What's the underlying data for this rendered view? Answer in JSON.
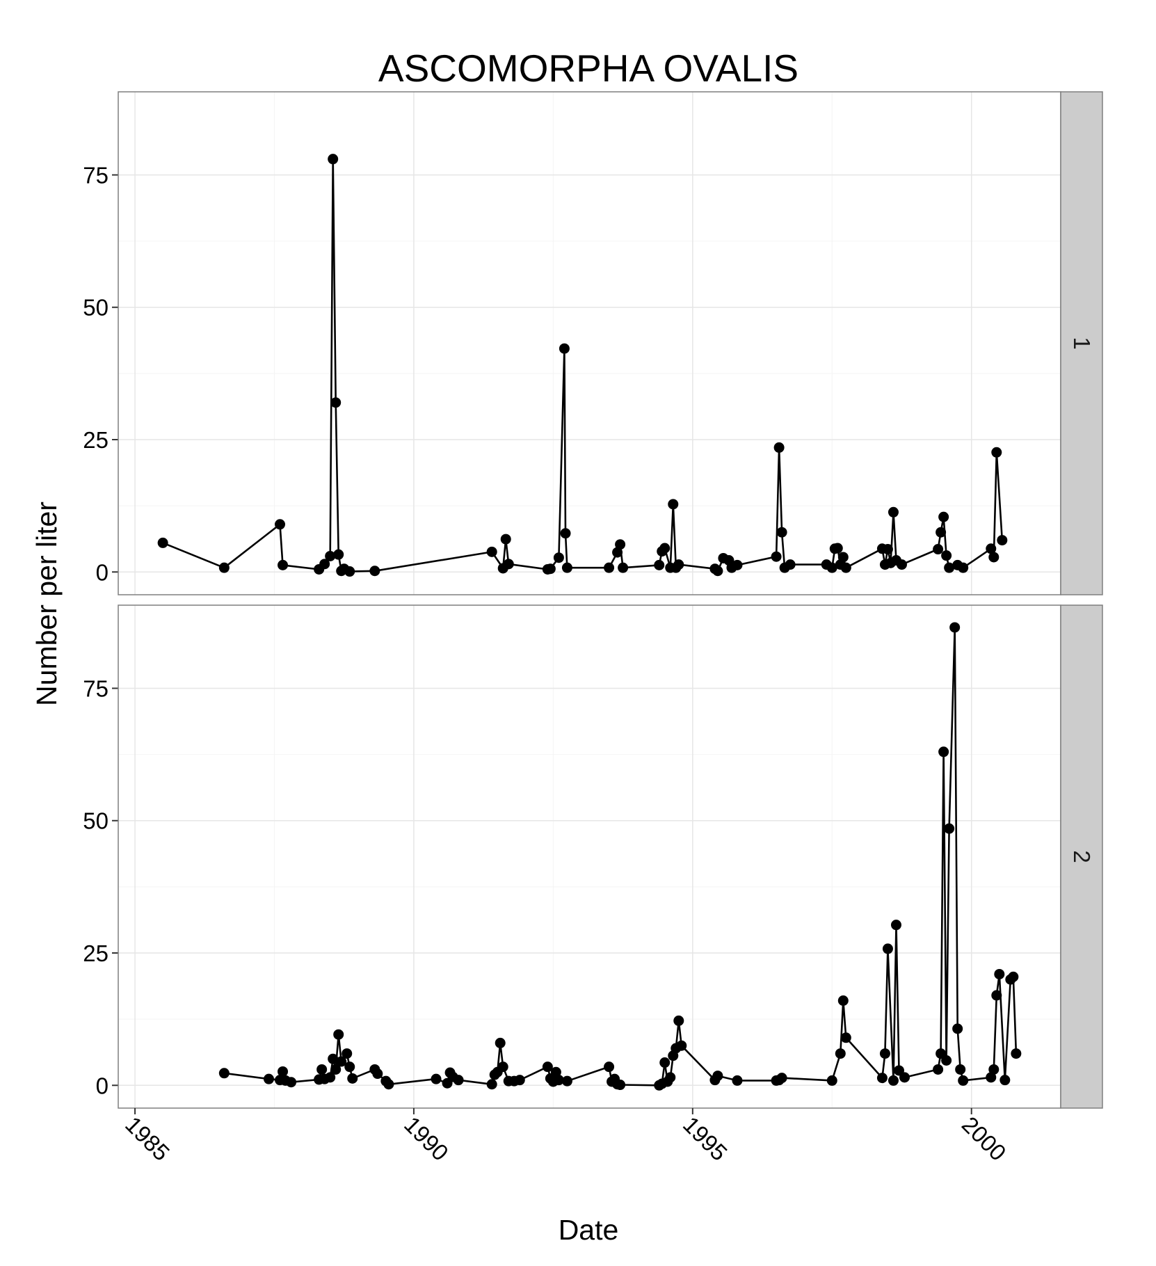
{
  "chart_data": {
    "type": "line",
    "title": "ASCOMORPHA OVALIS",
    "xlabel": "Date",
    "ylabel": "Number per liter",
    "x_ticks": [
      "1985",
      "1990",
      "1995",
      "2000"
    ],
    "y_ticks": [
      "0",
      "25",
      "50",
      "75"
    ],
    "xlim": [
      1984.7,
      2001.6
    ],
    "ylim": [
      -4.3,
      90.7
    ],
    "grid": true,
    "markers": true,
    "facet": "rows",
    "panels": [
      {
        "label": "1",
        "series": {
          "x": [
            1985.5,
            1986.6,
            1987.6,
            1987.65,
            1988.3,
            1988.4,
            1988.5,
            1988.55,
            1988.6,
            1988.65,
            1988.7,
            1988.75,
            1988.85,
            1989.3,
            1991.4,
            1991.6,
            1991.65,
            1991.7,
            1992.4,
            1992.45,
            1992.6,
            1992.7,
            1992.72,
            1992.75,
            1993.5,
            1993.65,
            1993.7,
            1993.75,
            1994.4,
            1994.45,
            1994.5,
            1994.6,
            1994.65,
            1994.7,
            1994.75,
            1995.4,
            1995.45,
            1995.55,
            1995.65,
            1995.7,
            1995.8,
            1996.5,
            1996.55,
            1996.6,
            1996.65,
            1996.75,
            1997.4,
            1997.5,
            1997.55,
            1997.6,
            1997.65,
            1997.7,
            1997.75,
            1998.4,
            1998.45,
            1998.5,
            1998.55,
            1998.6,
            1998.65,
            1998.75,
            1999.4,
            1999.45,
            1999.5,
            1999.55,
            1999.6,
            1999.75,
            1999.85,
            2000.35,
            2000.4,
            2000.45,
            2000.55
          ],
          "y": [
            5.5,
            0.8,
            9.0,
            1.3,
            0.5,
            1.5,
            3.0,
            78.0,
            32.0,
            3.3,
            0.2,
            0.6,
            0.1,
            0.2,
            3.8,
            0.7,
            6.2,
            1.5,
            0.5,
            0.6,
            2.7,
            42.2,
            7.3,
            0.8,
            0.8,
            3.7,
            5.2,
            0.8,
            1.3,
            3.9,
            4.5,
            0.8,
            12.8,
            0.8,
            1.4,
            0.6,
            0.2,
            2.6,
            2.2,
            0.8,
            1.3,
            2.9,
            23.5,
            7.5,
            0.8,
            1.4,
            1.4,
            0.8,
            4.4,
            4.5,
            1.4,
            2.8,
            0.8,
            4.4,
            1.4,
            4.3,
            1.7,
            11.3,
            2.2,
            1.4,
            4.3,
            7.5,
            10.4,
            3.1,
            0.8,
            1.3,
            0.8,
            4.4,
            2.8,
            22.6,
            6.0
          ]
        }
      },
      {
        "label": "2",
        "series": {
          "x": [
            1986.6,
            1987.4,
            1987.6,
            1987.65,
            1987.7,
            1987.8,
            1988.3,
            1988.35,
            1988.4,
            1988.5,
            1988.55,
            1988.6,
            1988.65,
            1988.7,
            1988.8,
            1988.85,
            1988.9,
            1989.3,
            1989.35,
            1989.5,
            1989.55,
            1990.4,
            1990.6,
            1990.65,
            1990.7,
            1990.8,
            1991.4,
            1991.45,
            1991.5,
            1991.55,
            1991.6,
            1991.7,
            1991.8,
            1991.9,
            1992.4,
            1992.45,
            1992.5,
            1992.55,
            1992.6,
            1992.75,
            1993.5,
            1993.55,
            1993.6,
            1993.65,
            1993.7,
            1994.4,
            1994.45,
            1994.5,
            1994.55,
            1994.6,
            1994.65,
            1994.7,
            1994.75,
            1994.8,
            1995.4,
            1995.45,
            1995.8,
            1996.5,
            1996.55,
            1996.6,
            1997.5,
            1997.65,
            1997.7,
            1997.75,
            1998.4,
            1998.45,
            1998.5,
            1998.6,
            1998.65,
            1998.7,
            1998.8,
            1999.4,
            1999.45,
            1999.5,
            1999.55,
            1999.6,
            1999.7,
            1999.75,
            1999.8,
            1999.85,
            2000.35,
            2000.4,
            2000.45,
            2000.5,
            2000.6,
            2000.7,
            2000.75,
            2000.8
          ],
          "y": [
            2.3,
            1.2,
            1.0,
            2.6,
            0.9,
            0.6,
            1.1,
            3.0,
            1.2,
            1.5,
            5.0,
            3.0,
            9.6,
            4.5,
            6.0,
            3.5,
            1.3,
            3.0,
            2.2,
            0.8,
            0.2,
            1.2,
            0.4,
            2.4,
            1.6,
            1.0,
            0.2,
            2.0,
            2.5,
            8.0,
            3.5,
            0.8,
            0.8,
            1.0,
            3.5,
            1.3,
            0.7,
            2.5,
            1.0,
            0.8,
            3.5,
            0.7,
            1.2,
            0.2,
            0.1,
            0.0,
            0.3,
            4.3,
            0.7,
            1.5,
            5.6,
            7.0,
            12.2,
            7.5,
            1.0,
            1.8,
            0.9,
            0.9,
            1.0,
            1.4,
            0.9,
            6.0,
            16.0,
            9.0,
            1.4,
            6.0,
            25.8,
            0.9,
            30.3,
            2.8,
            1.5,
            3.0,
            6.0,
            63.0,
            4.7,
            48.5,
            86.5,
            10.7,
            3.0,
            0.9,
            1.5,
            3.0,
            17.0,
            21.0,
            1.0,
            20.0,
            20.5,
            6.0
          ]
        }
      }
    ]
  }
}
